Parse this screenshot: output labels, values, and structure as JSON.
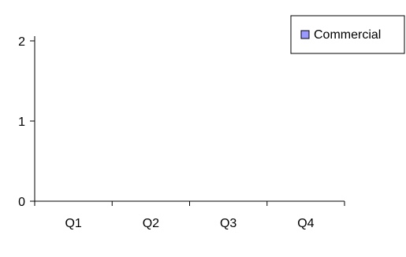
{
  "chart_data": {
    "type": "bar",
    "categories": [
      "Q1",
      "Q2",
      "Q3",
      "Q4"
    ],
    "series": [
      {
        "name": "Commercial",
        "values": [
          0,
          0,
          0,
          0
        ],
        "color": "#9999ff"
      }
    ],
    "ylim": [
      0,
      2
    ],
    "yticks": [
      "0",
      "1",
      "2"
    ],
    "legend": {
      "position": "top-right",
      "entries": [
        "Commercial"
      ]
    },
    "grid": false,
    "axis_color": "#000000"
  }
}
